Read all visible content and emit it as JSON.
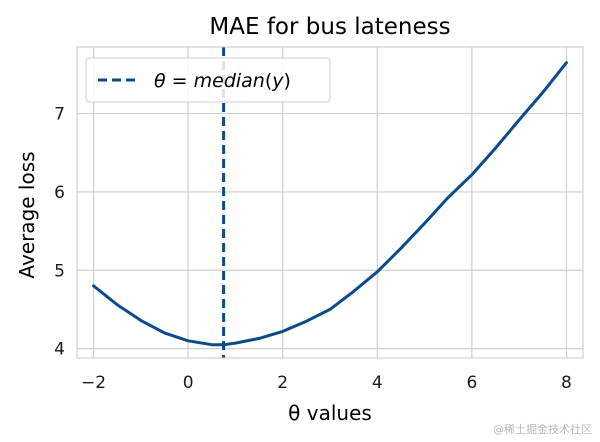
{
  "chart_data": {
    "type": "line",
    "title": "MAE for bus lateness",
    "xlabel": "θ values",
    "ylabel": "Average loss",
    "xlim": [
      -2.35,
      8.35
    ],
    "ylim": [
      3.88,
      7.85
    ],
    "xticks": [
      -2,
      0,
      2,
      4,
      6,
      8
    ],
    "xtick_labels": [
      "−2",
      "0",
      "2",
      "4",
      "6",
      "8"
    ],
    "yticks": [
      4,
      5,
      6,
      7
    ],
    "ytick_labels": [
      "4",
      "5",
      "6",
      "7"
    ],
    "grid": true,
    "legend_position": "top-left",
    "series": [
      {
        "kind": "line",
        "color": "#0b4a8b",
        "x": [
          -2,
          -1.5,
          -1,
          -0.5,
          0,
          0.5,
          0.75,
          1,
          1.5,
          2,
          2.5,
          3,
          3.5,
          4,
          4.5,
          5,
          5.5,
          6,
          6.5,
          7,
          7.5,
          8
        ],
        "y": [
          4.8,
          4.56,
          4.36,
          4.2,
          4.1,
          4.05,
          4.05,
          4.07,
          4.13,
          4.22,
          4.35,
          4.5,
          4.73,
          4.98,
          5.28,
          5.6,
          5.93,
          6.22,
          6.56,
          6.92,
          7.27,
          7.65
        ]
      },
      {
        "kind": "vline",
        "name": "θ = median(y)",
        "color": "#0b4a8b",
        "x": 0.75,
        "style": "dashed"
      }
    ]
  },
  "watermark": "@稀土掘金技术社区"
}
